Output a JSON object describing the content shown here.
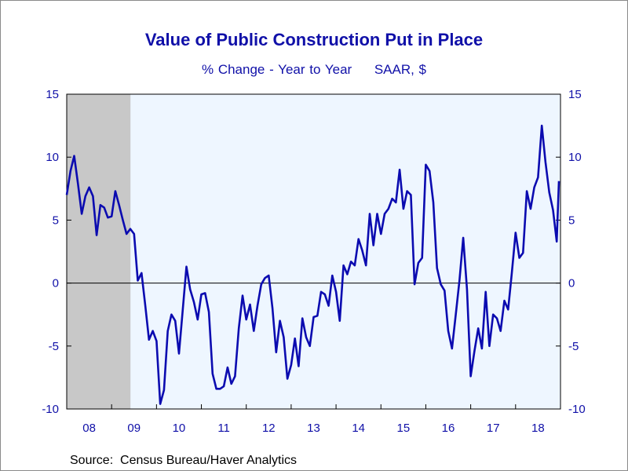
{
  "chart_data": {
    "type": "line",
    "title": "Value of Public Construction Put in Place",
    "subtitle": "% Change - Year to Year",
    "subtitle_units": "SAAR, $",
    "source": "Source:  Census Bureau/Haver Analytics",
    "x_start": 2008.0,
    "x_end": 2018.917,
    "x_tick_labels": [
      "08",
      "09",
      "10",
      "11",
      "12",
      "13",
      "14",
      "15",
      "16",
      "17",
      "18"
    ],
    "ylim": [
      -10,
      15
    ],
    "y_ticks_left": [
      "15",
      "10",
      "5",
      "0",
      "-5",
      "-10"
    ],
    "y_ticks_right": [
      "15",
      "10",
      "5",
      "0",
      "-5",
      "-10"
    ],
    "zero_line": true,
    "recession_shading": {
      "start": 2008.0,
      "end": 2009.42,
      "color": "#c8c8c8"
    },
    "plot_background": "#eef6ff",
    "line_color": "#0b0bb0",
    "series": [
      {
        "values": [
          7.0,
          8.9,
          10.1,
          7.9,
          5.5,
          6.9,
          7.6,
          6.9,
          3.8,
          6.2,
          6.0,
          5.2,
          5.3,
          7.3,
          6.2,
          5.0,
          3.9,
          4.3,
          3.9,
          0.2,
          0.8,
          -1.8,
          -4.5,
          -3.8,
          -4.6,
          -9.6,
          -8.5,
          -3.8,
          -2.5,
          -3.0,
          -5.6,
          -2.2,
          1.3,
          -0.5,
          -1.5,
          -2.9,
          -0.9,
          -0.8,
          -2.3,
          -7.2,
          -8.4,
          -8.4,
          -8.2,
          -6.7,
          -8.0,
          -7.4,
          -3.6,
          -1.0,
          -2.9,
          -1.7,
          -3.8,
          -1.8,
          -0.1,
          0.4,
          0.6,
          -2.0,
          -5.5,
          -3.0,
          -4.3,
          -7.6,
          -6.5,
          -4.4,
          -6.6,
          -2.8,
          -4.3,
          -5.0,
          -2.7,
          -2.6,
          -0.7,
          -0.9,
          -1.8,
          0.6,
          -0.7,
          -3.0,
          1.4,
          0.7,
          1.7,
          1.4,
          3.5,
          2.6,
          1.4,
          5.5,
          3.0,
          5.5,
          3.9,
          5.5,
          5.9,
          6.7,
          6.4,
          9.0,
          5.9,
          7.3,
          7.0,
          -0.1,
          1.6,
          2.0,
          9.4,
          8.9,
          6.4,
          1.2,
          -0.1,
          -0.6,
          -3.8,
          -5.2,
          -2.5,
          0.2,
          3.6,
          -0.5,
          -7.4,
          -5.4,
          -3.6,
          -5.2,
          -0.7,
          -5.0,
          -2.5,
          -2.8,
          -3.8,
          -1.4,
          -2.1,
          0.8,
          4.0,
          2.0,
          2.4,
          7.3,
          5.9,
          7.6,
          8.4,
          12.5,
          9.6,
          7.2,
          5.8,
          3.3,
          8.1
        ]
      }
    ]
  }
}
